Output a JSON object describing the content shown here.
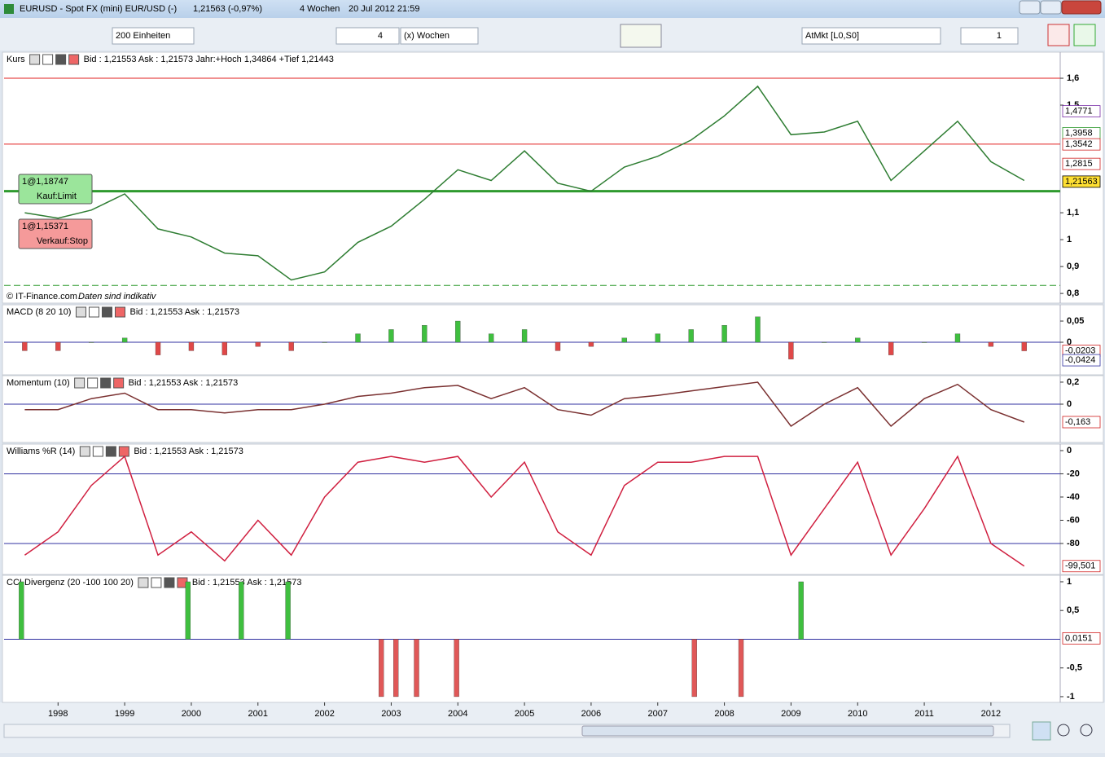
{
  "window": {
    "title": "EURUSD - Spot FX (mini) EUR/USD (-)",
    "last": "1,21563 (-0,97%)",
    "period": "4 Wochen",
    "timestamp": "20 Jul 2012 21:59"
  },
  "toolbar": {
    "units": "200 Einheiten",
    "period_count": "4",
    "period_unit": "(x) Wochen",
    "order_mode": "AtMkt [L0,S0]",
    "quantity": "1"
  },
  "chart_data": [
    {
      "type": "line",
      "title": "Kurs",
      "subtitle": "Bid : 1,21553 Ask : 1,21573 Jahr:+Hoch 1,34864 +Tief 1,21443",
      "color": "#2e7d32",
      "x": [
        1997.5,
        1998,
        1998.5,
        1999,
        1999.5,
        2000,
        2000.5,
        2001,
        2001.5,
        2002,
        2002.5,
        2003,
        2003.5,
        2004,
        2004.5,
        2005,
        2005.5,
        2006,
        2006.5,
        2007,
        2007.5,
        2008,
        2008.5,
        2009,
        2009.5,
        2010,
        2010.5,
        2011,
        2011.5,
        2012,
        2012.5
      ],
      "values": [
        1.1,
        1.08,
        1.11,
        1.17,
        1.04,
        1.01,
        0.95,
        0.94,
        0.85,
        0.88,
        0.99,
        1.05,
        1.15,
        1.26,
        1.22,
        1.33,
        1.21,
        1.18,
        1.27,
        1.31,
        1.37,
        1.46,
        1.57,
        1.39,
        1.4,
        1.44,
        1.22,
        1.33,
        1.44,
        1.29,
        1.22
      ],
      "xlim": [
        1997.19,
        2013.04
      ],
      "ylim": [
        0.764,
        1.697
      ],
      "yticks": [
        {
          "value": 0.8,
          "label": "0,8"
        },
        {
          "value": 0.9,
          "label": "0,9"
        },
        1,
        {
          "value": 1.1,
          "label": "1,1"
        },
        {
          "value": 1.5,
          "label": "1,5"
        },
        {
          "value": 1.6,
          "label": "1,6"
        }
      ],
      "hlines": [
        {
          "value": 1.6,
          "color": "#e02020"
        },
        {
          "value": 1.355,
          "color": "#e02020"
        },
        {
          "value": 1.18,
          "color": "#2e9a2e"
        },
        {
          "value": 0.83,
          "color": "#2e9a2e"
        }
      ],
      "badges": [
        {
          "value": 1.4771,
          "label": "1,4771",
          "color": "#7b2fa8"
        },
        {
          "value": 1.3958,
          "label": "1,3958",
          "color": "#2e9a2e"
        },
        {
          "value": 1.3542,
          "label": "1,3542",
          "color": "#d02020"
        },
        {
          "value": 1.2815,
          "label": "1,2815",
          "color": "#d02020"
        },
        {
          "value": 1.21563,
          "label": "1,21563",
          "color": "#000000",
          "background": "#ffe033"
        }
      ],
      "orders": [
        {
          "label": "1@1,18747",
          "kind": "Kauf:Limit",
          "color": "#9be59b"
        },
        {
          "label": "1@1,15371",
          "kind": "Verkauf:Stop",
          "color": "#f59a9a"
        }
      ],
      "annotations": [
        "© IT-Finance.com",
        "Daten sind indikativ"
      ]
    },
    {
      "type": "bar",
      "title": "MACD (8 20 10)",
      "subtitle": "Bid : 1,21553 Ask : 1,21573",
      "colors": {
        "positive": "#3fbf3f",
        "negative": "#e04848"
      },
      "x": [
        1997.5,
        1998,
        1998.5,
        1999,
        1999.5,
        2000,
        2000.5,
        2001,
        2001.5,
        2002,
        2002.5,
        2003,
        2003.5,
        2004,
        2004.5,
        2005,
        2005.5,
        2006,
        2006.5,
        2007,
        2007.5,
        2008,
        2008.5,
        2009,
        2009.5,
        2010,
        2010.5,
        2011,
        2011.5,
        2012,
        2012.5
      ],
      "values": [
        -0.02,
        -0.02,
        0.0,
        0.01,
        -0.03,
        -0.02,
        -0.03,
        -0.01,
        -0.02,
        0.0,
        0.02,
        0.03,
        0.04,
        0.05,
        0.02,
        0.03,
        -0.02,
        -0.01,
        0.01,
        0.02,
        0.03,
        0.04,
        0.06,
        -0.04,
        0.0,
        0.01,
        -0.03,
        0.0,
        0.02,
        -0.01,
        -0.0203
      ],
      "xlim": [
        1997.19,
        2013.04
      ],
      "ylim": [
        -0.0769,
        0.0885
      ],
      "yticks": [
        0,
        {
          "value": 0.05,
          "label": "0,05"
        }
      ],
      "hlines": [
        {
          "value": 0,
          "color": "#3030a0"
        }
      ],
      "badges": [
        {
          "value": -0.0203,
          "label": "-0,0203",
          "color": "#d02020"
        },
        {
          "value": -0.0424,
          "label": "-0,0424",
          "color": "#3030a0"
        }
      ]
    },
    {
      "type": "line",
      "title": "Momentum (10)",
      "subtitle": "Bid : 1,21553 Ask : 1,21573",
      "color": "#7a3030",
      "x": [
        1997.5,
        1998,
        1998.5,
        1999,
        1999.5,
        2000,
        2000.5,
        2001,
        2001.5,
        2002,
        2002.5,
        2003,
        2003.5,
        2004,
        2004.5,
        2005,
        2005.5,
        2006,
        2006.5,
        2007,
        2007.5,
        2008,
        2008.5,
        2009,
        2009.5,
        2010,
        2010.5,
        2011,
        2011.5,
        2012,
        2012.5
      ],
      "values": [
        -0.05,
        -0.05,
        0.05,
        0.1,
        -0.05,
        -0.05,
        -0.08,
        -0.05,
        -0.05,
        0.0,
        0.07,
        0.1,
        0.15,
        0.17,
        0.05,
        0.15,
        -0.05,
        -0.1,
        0.05,
        0.08,
        0.12,
        0.16,
        0.2,
        -0.2,
        0.0,
        0.15,
        -0.2,
        0.05,
        0.18,
        -0.05,
        -0.163
      ],
      "xlim": [
        1997.19,
        2013.04
      ],
      "ylim": [
        -0.348,
        0.259
      ],
      "yticks": [
        0,
        {
          "value": 0.2,
          "label": "0,2"
        }
      ],
      "hlines": [
        {
          "value": 0,
          "color": "#3030a0"
        }
      ],
      "badges": [
        {
          "value": -0.163,
          "label": "-0,163",
          "color": "#d02020"
        }
      ]
    },
    {
      "type": "line",
      "title": "Williams %R (14)",
      "subtitle": "Bid : 1,21553 Ask : 1,21573",
      "color": "#d02040",
      "x": [
        1997.5,
        1998,
        1998.5,
        1999,
        1999.5,
        2000,
        2000.5,
        2001,
        2001.5,
        2002,
        2002.5,
        2003,
        2003.5,
        2004,
        2004.5,
        2005,
        2005.5,
        2006,
        2006.5,
        2007,
        2007.5,
        2008,
        2008.5,
        2009,
        2009.5,
        2010,
        2010.5,
        2011,
        2011.5,
        2012,
        2012.5
      ],
      "values": [
        -90,
        -70,
        -30,
        -5,
        -90,
        -70,
        -95,
        -60,
        -90,
        -40,
        -10,
        -5,
        -10,
        -5,
        -40,
        -10,
        -70,
        -90,
        -30,
        -10,
        -10,
        -5,
        -5,
        -90,
        -50,
        -10,
        -90,
        -50,
        -5,
        -80,
        -99.501
      ],
      "xlim": [
        1997.19,
        2013.04
      ],
      "ylim": [
        -106.7,
        5.6
      ],
      "yticks": [
        -80,
        -60,
        -40,
        -20,
        0
      ],
      "hlines": [
        {
          "value": -20,
          "color": "#3030a0"
        },
        {
          "value": -80,
          "color": "#3030a0"
        }
      ],
      "badges": [
        {
          "value": -99.501,
          "label": "-99,501",
          "color": "#d02020"
        }
      ]
    },
    {
      "type": "bar",
      "title": "CCI Divergenz (20 -100 100 20)",
      "subtitle": "Bid : 1,21553 Ask : 1,21573",
      "colors": {
        "positive": "#3fbf3f",
        "negative": "#e05858"
      },
      "x": [
        1997.45,
        1999.95,
        2000.75,
        2001.45,
        2002.85,
        2003.07,
        2003.38,
        2003.98,
        2007.55,
        2008.25,
        2009.15
      ],
      "values": [
        1,
        1,
        1,
        1,
        -1,
        -1,
        -1,
        -1,
        -1,
        -1,
        1
      ],
      "xlim": [
        1997.19,
        2013.04
      ],
      "ylim": [
        -1.1,
        1.113
      ],
      "yticks": [
        -1,
        {
          "value": -0.5,
          "label": "-0,5"
        },
        {
          "value": 0.5,
          "label": "0,5"
        },
        1
      ],
      "xticks": [
        1998,
        1999,
        2000,
        2001,
        2002,
        2003,
        2004,
        2005,
        2006,
        2007,
        2008,
        2009,
        2010,
        2011,
        2012
      ],
      "hlines": [
        {
          "value": 0,
          "color": "#3030a0"
        }
      ],
      "badges": [
        {
          "value": 0.0151,
          "label": "0,0151",
          "color": "#d02020"
        }
      ]
    }
  ]
}
